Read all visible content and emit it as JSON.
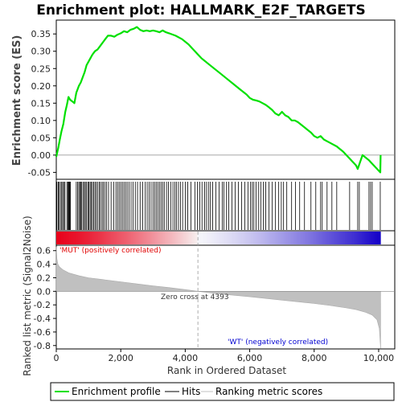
{
  "chart_data": {
    "type": "line",
    "title": "Enrichment plot: HALLMARK_E2F_TARGETS",
    "xlabel": "Rank in Ordered Dataset",
    "ylabel_top": "Enrichment score (ES)",
    "ylabel_bottom": "Ranked list metric (Signal2Noise)",
    "xlim": [
      0,
      10500
    ],
    "x_ticks": [
      0,
      2000,
      4000,
      6000,
      8000,
      10000
    ],
    "x_tick_labels": [
      "0",
      "2,000",
      "4,000",
      "6,000",
      "8,000",
      "10,000"
    ],
    "es_ylim": [
      -0.07,
      0.39
    ],
    "es_ticks": [
      -0.05,
      0.0,
      0.05,
      0.1,
      0.15,
      0.2,
      0.25,
      0.3,
      0.35
    ],
    "es_tick_labels": [
      "-0.05",
      "0.00",
      "0.05",
      "0.10",
      "0.15",
      "0.20",
      "0.25",
      "0.30",
      "0.35"
    ],
    "metric_ylim": [
      -0.85,
      0.68
    ],
    "metric_ticks": [
      -0.8,
      -0.6,
      -0.4,
      -0.2,
      0.0,
      0.2,
      0.4,
      0.6
    ],
    "metric_tick_labels": [
      "-0.8",
      "-0.6",
      "-0.4",
      "-0.2",
      "0.0",
      "0.2",
      "0.4",
      "0.6"
    ],
    "enrichment_profile": {
      "x": [
        0,
        60,
        110,
        160,
        220,
        280,
        330,
        380,
        430,
        500,
        560,
        620,
        660,
        700,
        760,
        820,
        880,
        940,
        1000,
        1060,
        1120,
        1200,
        1280,
        1360,
        1440,
        1520,
        1600,
        1700,
        1800,
        1900,
        2000,
        2100,
        2200,
        2300,
        2400,
        2500,
        2600,
        2700,
        2800,
        2900,
        3000,
        3100,
        3200,
        3300,
        3400,
        3500,
        3700,
        3900,
        4100,
        4300,
        4500,
        4700,
        4900,
        5100,
        5300,
        5500,
        5700,
        5900,
        6000,
        6100,
        6200,
        6300,
        6400,
        6500,
        6600,
        6700,
        6800,
        6900,
        7000,
        7100,
        7200,
        7300,
        7400,
        7500,
        7700,
        7900,
        8000,
        8100,
        8200,
        8300,
        8400,
        8500,
        8700,
        8900,
        9100,
        9300,
        9350,
        9500,
        9700,
        9750,
        9900,
        10050,
        10060
      ],
      "y": [
        -0.005,
        0.02,
        0.045,
        0.068,
        0.09,
        0.125,
        0.145,
        0.168,
        0.16,
        0.155,
        0.15,
        0.18,
        0.19,
        0.2,
        0.21,
        0.225,
        0.24,
        0.26,
        0.27,
        0.28,
        0.29,
        0.3,
        0.305,
        0.315,
        0.325,
        0.335,
        0.345,
        0.345,
        0.342,
        0.348,
        0.352,
        0.358,
        0.355,
        0.362,
        0.365,
        0.37,
        0.362,
        0.358,
        0.36,
        0.358,
        0.36,
        0.358,
        0.355,
        0.36,
        0.355,
        0.352,
        0.345,
        0.335,
        0.32,
        0.3,
        0.28,
        0.265,
        0.25,
        0.235,
        0.22,
        0.205,
        0.19,
        0.175,
        0.165,
        0.16,
        0.158,
        0.155,
        0.15,
        0.145,
        0.138,
        0.13,
        0.12,
        0.115,
        0.125,
        0.115,
        0.11,
        0.1,
        0.1,
        0.095,
        0.08,
        0.065,
        0.055,
        0.05,
        0.055,
        0.045,
        0.04,
        0.035,
        0.025,
        0.01,
        -0.01,
        -0.03,
        -0.04,
        0.0,
        -0.015,
        -0.02,
        -0.035,
        -0.05,
        0.0
      ]
    },
    "hits": [
      20,
      60,
      90,
      130,
      170,
      200,
      240,
      270,
      330,
      360,
      380,
      400,
      420,
      440,
      620,
      660,
      700,
      730,
      760,
      790,
      830,
      870,
      900,
      940,
      980,
      1010,
      1050,
      1080,
      1120,
      1160,
      1200,
      1240,
      1280,
      1330,
      1370,
      1420,
      1460,
      1510,
      1560,
      1620,
      1700,
      1780,
      1850,
      1900,
      1950,
      2000,
      2050,
      2100,
      2150,
      2200,
      2260,
      2320,
      2380,
      2450,
      2520,
      2600,
      2680,
      2760,
      2820,
      2880,
      2940,
      3000,
      3050,
      3100,
      3150,
      3200,
      3250,
      3300,
      3350,
      3420,
      3480,
      3550,
      3620,
      3680,
      3730,
      3790,
      3850,
      3920,
      4000,
      4080,
      4180,
      4300,
      4380,
      4450,
      4520,
      4600,
      4660,
      4720,
      4780,
      4850,
      4950,
      5050,
      5150,
      5200,
      5280,
      5350,
      5450,
      5550,
      5650,
      5750,
      5850,
      5950,
      6020,
      6080,
      6130,
      6200,
      6280,
      6350,
      6420,
      6500,
      6600,
      6700,
      6800,
      6900,
      6980,
      7050,
      7150,
      7300,
      7420,
      7550,
      7700,
      7900,
      8050,
      8200,
      8250,
      8400,
      8550,
      8700,
      9100,
      9350,
      9400,
      9700,
      9750,
      9800,
      10050
    ],
    "zero_cross_rank": 4393,
    "zero_cross_label": "Zero cross at 4393",
    "pos_label": "'MUT' (positively correlated)",
    "neg_label": "'WT' (negatively correlated)",
    "metric_curve": {
      "x": [
        0,
        20,
        50,
        100,
        200,
        400,
        700,
        1000,
        1500,
        2000,
        2500,
        3000,
        3500,
        4000,
        4393,
        5000,
        6000,
        7000,
        8000,
        8500,
        9000,
        9300,
        9600,
        9800,
        9950,
        10020,
        10060
      ],
      "y": [
        0.66,
        0.48,
        0.4,
        0.36,
        0.32,
        0.27,
        0.23,
        0.2,
        0.17,
        0.14,
        0.11,
        0.08,
        0.055,
        0.025,
        0.0,
        -0.035,
        -0.08,
        -0.13,
        -0.18,
        -0.21,
        -0.245,
        -0.27,
        -0.31,
        -0.35,
        -0.42,
        -0.55,
        -0.84
      ]
    },
    "legend": [
      "Enrichment profile",
      "Hits",
      "Ranking metric scores"
    ],
    "colors": {
      "profile": "#00e000",
      "hits": "#000000",
      "metric_fill": "#c0c0c0",
      "red": "#e8001a",
      "blue": "#1400c8",
      "pos_text": "#e00000",
      "neg_text": "#0000d0",
      "zero_line": "#999999"
    }
  }
}
